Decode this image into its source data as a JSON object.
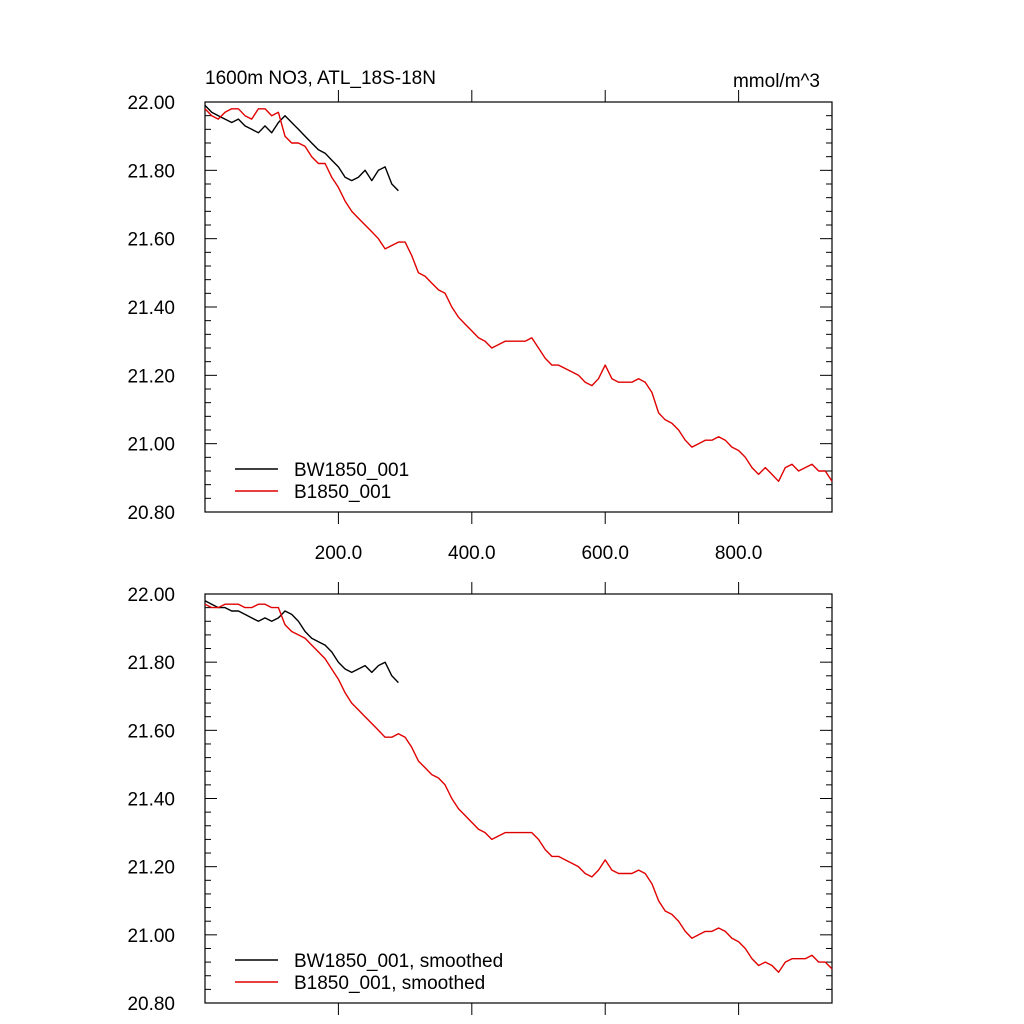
{
  "chart_data": [
    {
      "type": "line",
      "title_left": "1600m NO3, ATL_18S-18N",
      "title_right": "mmol/m^3",
      "xlim": [
        0,
        940
      ],
      "ylim": [
        20.8,
        22.0
      ],
      "x_ticks": [
        200,
        400,
        600,
        800
      ],
      "x_tick_labels": [
        "200.0",
        "400.0",
        "600.0",
        "800.0"
      ],
      "y_ticks": [
        20.8,
        21.0,
        21.2,
        21.4,
        21.6,
        21.8,
        22.0
      ],
      "y_tick_labels": [
        "20.80",
        "21.00",
        "21.20",
        "21.40",
        "21.60",
        "21.80",
        "22.00"
      ],
      "legend_position": "bottom-left",
      "series": [
        {
          "name": "BW1850_001",
          "color": "#000000",
          "x": [
            0,
            10,
            20,
            30,
            40,
            50,
            60,
            70,
            80,
            90,
            100,
            110,
            120,
            130,
            140,
            150,
            160,
            170,
            180,
            190,
            200,
            210,
            220,
            230,
            240,
            250,
            260,
            270,
            280,
            290
          ],
          "y": [
            21.99,
            21.97,
            21.96,
            21.95,
            21.94,
            21.95,
            21.93,
            21.92,
            21.91,
            21.93,
            21.91,
            21.94,
            21.96,
            21.94,
            21.92,
            21.9,
            21.88,
            21.86,
            21.85,
            21.83,
            21.81,
            21.78,
            21.77,
            21.78,
            21.8,
            21.77,
            21.8,
            21.81,
            21.76,
            21.74
          ]
        },
        {
          "name": "B1850_001",
          "color": "#e00000",
          "x": [
            0,
            10,
            20,
            30,
            40,
            50,
            60,
            70,
            80,
            90,
            100,
            110,
            120,
            130,
            140,
            150,
            160,
            170,
            180,
            190,
            200,
            210,
            220,
            230,
            240,
            250,
            260,
            270,
            280,
            290,
            300,
            310,
            320,
            330,
            340,
            350,
            360,
            370,
            380,
            390,
            400,
            410,
            420,
            430,
            440,
            450,
            460,
            470,
            480,
            490,
            500,
            510,
            520,
            530,
            540,
            550,
            560,
            570,
            580,
            590,
            600,
            610,
            620,
            630,
            640,
            650,
            660,
            670,
            680,
            690,
            700,
            710,
            720,
            730,
            740,
            750,
            760,
            770,
            780,
            790,
            800,
            810,
            820,
            830,
            840,
            850,
            860,
            870,
            880,
            890,
            900,
            910,
            920,
            930,
            940
          ],
          "y": [
            21.98,
            21.96,
            21.95,
            21.97,
            21.98,
            21.98,
            21.96,
            21.95,
            21.98,
            21.98,
            21.96,
            21.97,
            21.9,
            21.88,
            21.88,
            21.87,
            21.84,
            21.82,
            21.82,
            21.78,
            21.75,
            21.71,
            21.68,
            21.66,
            21.64,
            21.62,
            21.6,
            21.57,
            21.58,
            21.59,
            21.59,
            21.55,
            21.5,
            21.49,
            21.47,
            21.45,
            21.44,
            21.4,
            21.37,
            21.35,
            21.33,
            21.31,
            21.3,
            21.28,
            21.29,
            21.3,
            21.3,
            21.3,
            21.3,
            21.31,
            21.28,
            21.25,
            21.23,
            21.23,
            21.22,
            21.21,
            21.2,
            21.18,
            21.17,
            21.19,
            21.23,
            21.19,
            21.18,
            21.18,
            21.18,
            21.19,
            21.18,
            21.15,
            21.09,
            21.07,
            21.06,
            21.04,
            21.01,
            20.99,
            21.0,
            21.01,
            21.01,
            21.02,
            21.01,
            20.99,
            20.98,
            20.96,
            20.93,
            20.91,
            20.93,
            20.91,
            20.89,
            20.93,
            20.94,
            20.92,
            20.93,
            20.94,
            20.92,
            20.92,
            20.89
          ]
        }
      ]
    },
    {
      "type": "line",
      "xlim": [
        0,
        940
      ],
      "ylim": [
        20.8,
        22.0
      ],
      "x_ticks": [
        200,
        400,
        600,
        800
      ],
      "x_tick_labels": [],
      "y_ticks": [
        20.8,
        21.0,
        21.2,
        21.4,
        21.6,
        21.8,
        22.0
      ],
      "y_tick_labels": [
        "20.80",
        "21.00",
        "21.20",
        "21.40",
        "21.60",
        "21.80",
        "22.00"
      ],
      "legend_position": "bottom-left",
      "series": [
        {
          "name": "BW1850_001, smoothed",
          "color": "#000000",
          "x": [
            0,
            10,
            20,
            30,
            40,
            50,
            60,
            70,
            80,
            90,
            100,
            110,
            120,
            130,
            140,
            150,
            160,
            170,
            180,
            190,
            200,
            210,
            220,
            230,
            240,
            250,
            260,
            270,
            280,
            290
          ],
          "y": [
            21.98,
            21.97,
            21.96,
            21.96,
            21.95,
            21.95,
            21.94,
            21.93,
            21.92,
            21.93,
            21.92,
            21.93,
            21.95,
            21.94,
            21.92,
            21.89,
            21.87,
            21.86,
            21.85,
            21.83,
            21.8,
            21.78,
            21.77,
            21.78,
            21.79,
            21.77,
            21.79,
            21.8,
            21.76,
            21.74
          ]
        },
        {
          "name": "B1850_001, smoothed",
          "color": "#e00000",
          "x": [
            0,
            10,
            20,
            30,
            40,
            50,
            60,
            70,
            80,
            90,
            100,
            110,
            120,
            130,
            140,
            150,
            160,
            170,
            180,
            190,
            200,
            210,
            220,
            230,
            240,
            250,
            260,
            270,
            280,
            290,
            300,
            310,
            320,
            330,
            340,
            350,
            360,
            370,
            380,
            390,
            400,
            410,
            420,
            430,
            440,
            450,
            460,
            470,
            480,
            490,
            500,
            510,
            520,
            530,
            540,
            550,
            560,
            570,
            580,
            590,
            600,
            610,
            620,
            630,
            640,
            650,
            660,
            670,
            680,
            690,
            700,
            710,
            720,
            730,
            740,
            750,
            760,
            770,
            780,
            790,
            800,
            810,
            820,
            830,
            840,
            850,
            860,
            870,
            880,
            890,
            900,
            910,
            920,
            930,
            940
          ],
          "y": [
            21.97,
            21.96,
            21.96,
            21.97,
            21.97,
            21.97,
            21.96,
            21.96,
            21.97,
            21.97,
            21.96,
            21.96,
            21.91,
            21.89,
            21.88,
            21.87,
            21.85,
            21.83,
            21.81,
            21.78,
            21.75,
            21.71,
            21.68,
            21.66,
            21.64,
            21.62,
            21.6,
            21.58,
            21.58,
            21.59,
            21.58,
            21.55,
            21.51,
            21.49,
            21.47,
            21.46,
            21.44,
            21.4,
            21.37,
            21.35,
            21.33,
            21.31,
            21.3,
            21.28,
            21.29,
            21.3,
            21.3,
            21.3,
            21.3,
            21.3,
            21.28,
            21.25,
            21.23,
            21.23,
            21.22,
            21.21,
            21.2,
            21.18,
            21.17,
            21.19,
            21.22,
            21.19,
            21.18,
            21.18,
            21.18,
            21.19,
            21.18,
            21.15,
            21.1,
            21.07,
            21.06,
            21.04,
            21.01,
            20.99,
            21.0,
            21.01,
            21.01,
            21.02,
            21.01,
            20.99,
            20.98,
            20.96,
            20.93,
            20.91,
            20.92,
            20.91,
            20.89,
            20.92,
            20.93,
            20.93,
            20.93,
            20.94,
            20.92,
            20.92,
            20.9
          ]
        }
      ]
    }
  ]
}
